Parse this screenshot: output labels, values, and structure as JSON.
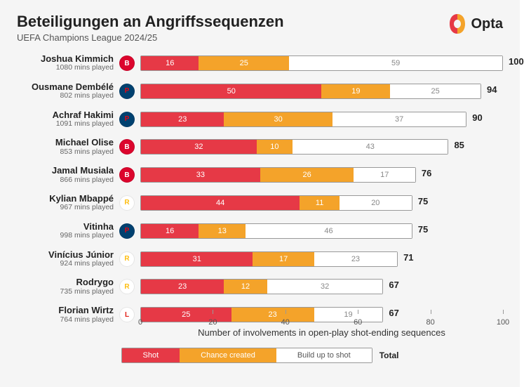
{
  "title": "Beteiligungen an Angriffssequenzen",
  "subtitle": "UEFA Champions League 2024/25",
  "brand": "Opta",
  "x_axis_label": "Number of involvements in open-play shot-ending sequences",
  "x_ticks": [
    0,
    20,
    40,
    60,
    80,
    100
  ],
  "x_max": 100,
  "colors": {
    "shot": "#e63946",
    "chance": "#f4a32a",
    "build": "#ffffff",
    "bg": "#f5f5f5",
    "axis": "#999999",
    "text": "#222222"
  },
  "legend": {
    "shot": "Shot",
    "chance": "Chance created",
    "build": "Build up to shot",
    "total": "Total"
  },
  "mins_suffix": " mins played",
  "clubs": {
    "bayern": {
      "bg": "#dc052d",
      "fg": "#ffffff",
      "txt": "B"
    },
    "psg": {
      "bg": "#004170",
      "fg": "#e30613",
      "txt": "P"
    },
    "madrid": {
      "bg": "#ffffff",
      "fg": "#febe10",
      "txt": "R"
    },
    "leverkusen": {
      "bg": "#ffffff",
      "fg": "#e32219",
      "txt": "L"
    }
  },
  "players": [
    {
      "name": "Joshua Kimmich",
      "mins": 1080,
      "club": "bayern",
      "shot": 16,
      "chance": 25,
      "build": 59,
      "total": 100
    },
    {
      "name": "Ousmane Dembélé",
      "mins": 802,
      "club": "psg",
      "shot": 50,
      "chance": 19,
      "build": 25,
      "total": 94
    },
    {
      "name": "Achraf Hakimi",
      "mins": 1091,
      "club": "psg",
      "shot": 23,
      "chance": 30,
      "build": 37,
      "total": 90
    },
    {
      "name": "Michael Olise",
      "mins": 853,
      "club": "bayern",
      "shot": 32,
      "chance": 10,
      "build": 43,
      "total": 85
    },
    {
      "name": "Jamal Musiala",
      "mins": 866,
      "club": "bayern",
      "shot": 33,
      "chance": 26,
      "build": 17,
      "total": 76
    },
    {
      "name": "Kylian Mbappé",
      "mins": 967,
      "club": "madrid",
      "shot": 44,
      "chance": 11,
      "build": 20,
      "total": 75
    },
    {
      "name": "Vitinha",
      "mins": 998,
      "club": "psg",
      "shot": 16,
      "chance": 13,
      "build": 46,
      "total": 75
    },
    {
      "name": "Vinícius Júnior",
      "mins": 924,
      "club": "madrid",
      "shot": 31,
      "chance": 17,
      "build": 23,
      "total": 71
    },
    {
      "name": "Rodrygo",
      "mins": 735,
      "club": "madrid",
      "shot": 23,
      "chance": 12,
      "build": 32,
      "total": 67
    },
    {
      "name": "Florian Wirtz",
      "mins": 764,
      "club": "leverkusen",
      "shot": 25,
      "chance": 23,
      "build": 19,
      "total": 67
    }
  ]
}
